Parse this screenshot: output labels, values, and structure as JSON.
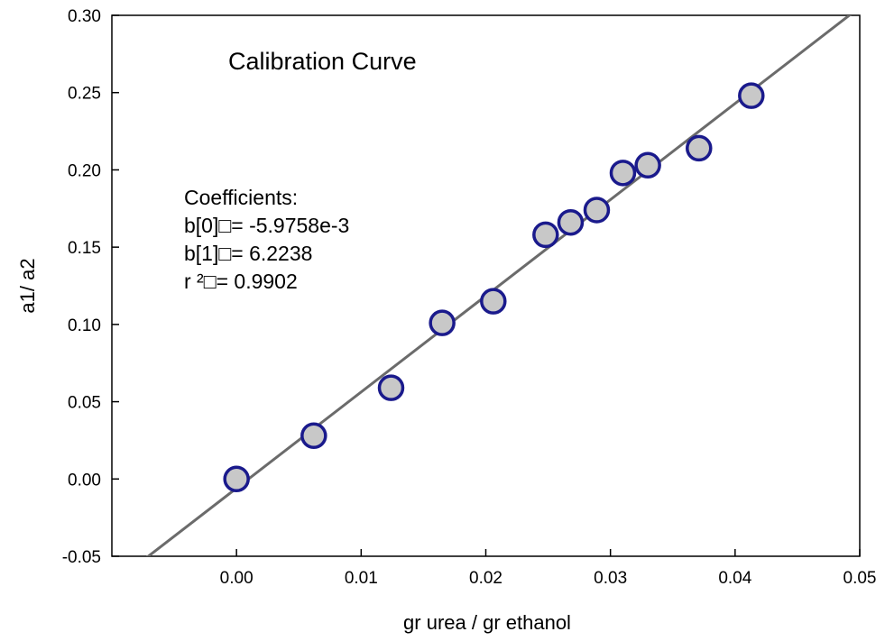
{
  "chart_data": {
    "type": "scatter",
    "title": "Calibration Curve",
    "xlabel": "gr urea / gr ethanol",
    "ylabel": "a1/ a2",
    "xlim": [
      -0.01,
      0.05
    ],
    "ylim": [
      -0.05,
      0.3
    ],
    "xticks": [
      0.0,
      0.01,
      0.02,
      0.03,
      0.04,
      0.05
    ],
    "xtick_labels": [
      "0.00",
      "0.01",
      "0.02",
      "0.03",
      "0.04",
      "0.05"
    ],
    "yticks": [
      -0.05,
      0.0,
      0.05,
      0.1,
      0.15,
      0.2,
      0.25,
      0.3
    ],
    "ytick_labels": [
      "-0.05",
      "0.00",
      "0.05",
      "0.10",
      "0.15",
      "0.20",
      "0.25",
      "0.30"
    ],
    "grid": false,
    "series": [
      {
        "x": [
          0.0,
          0.0062,
          0.0124,
          0.0165,
          0.0206,
          0.0248,
          0.0268,
          0.0289,
          0.031,
          0.033,
          0.0371,
          0.0413
        ],
        "y": [
          0.0,
          0.028,
          0.059,
          0.101,
          0.115,
          0.158,
          0.166,
          0.174,
          0.198,
          0.203,
          0.214,
          0.248
        ],
        "marker_fill": "#c8c8c8",
        "marker_edge": "#1a1a8c"
      }
    ],
    "fit_line": {
      "intercept": -0.0059758,
      "slope": 6.2238,
      "color": "#6b6b6b"
    },
    "annotation": {
      "lines": [
        "Coefficients:",
        "b[0]□= -5.9758e-3",
        "b[1]□= 6.2238",
        "r ²□= 0.9902"
      ]
    }
  }
}
